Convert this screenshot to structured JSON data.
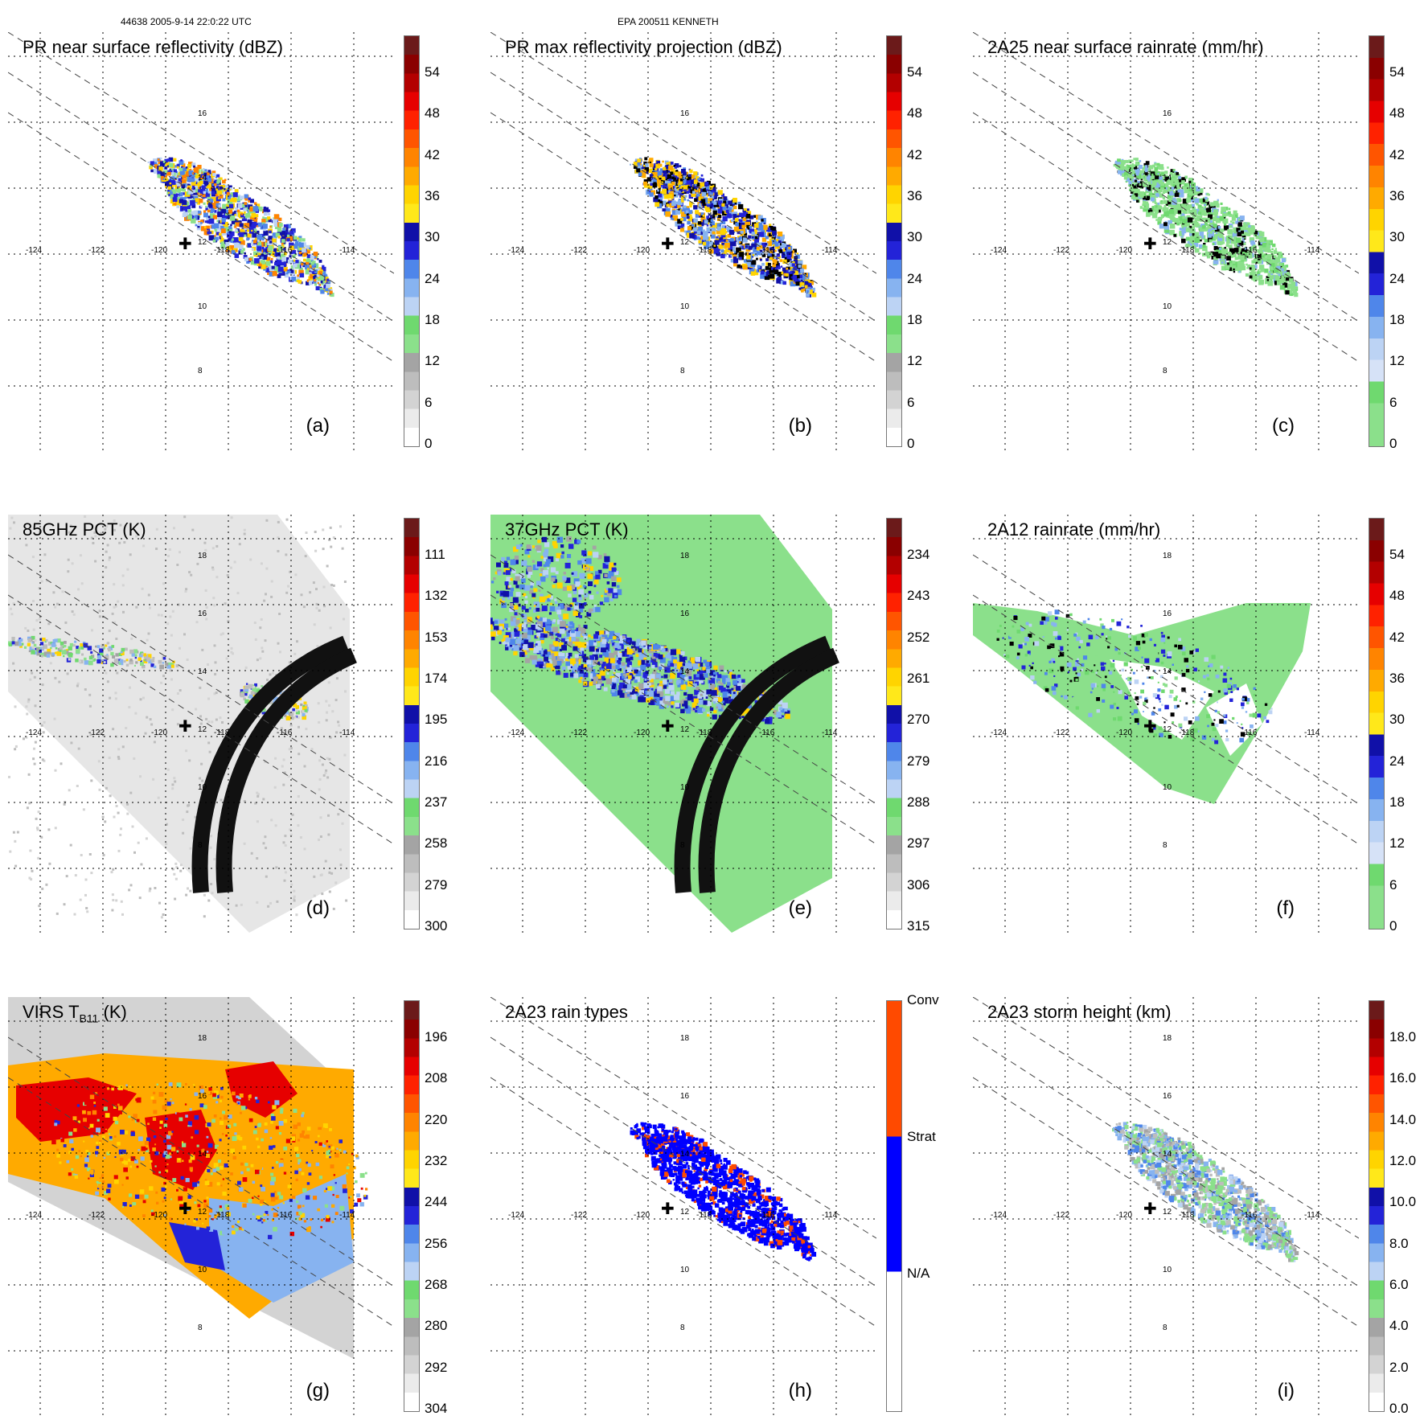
{
  "header": {
    "left": "44638 2005-9-14 22:0:22 UTC",
    "center": "EPA 200511 KENNETH"
  },
  "panels": [
    {
      "id": "a",
      "title": "PR near surface reflectivity (dBZ)",
      "label": "(a)",
      "colorbar": [
        "#ffffff",
        "#ebebeb",
        "#d3d3d3",
        "#bdbdbd",
        "#a4a4a4",
        "#8be08b",
        "#6fd96f",
        "#bcd3f4",
        "#87b3f0",
        "#4f86ea",
        "#2323d8",
        "#1010a8",
        "#ffe81a",
        "#ffd400",
        "#ffaa00",
        "#ff8400",
        "#ff5500",
        "#ff2200",
        "#e60000",
        "#b30000",
        "#8a0000",
        "#6b1a1a"
      ],
      "ticks": [
        "54",
        "48",
        "42",
        "36",
        "30",
        "24",
        "18",
        "12",
        "6",
        "0"
      ],
      "lon_labels": [
        "-124",
        "-122",
        "-120",
        "-118",
        "-116",
        "-114"
      ],
      "lat_labels": [
        "16",
        "14",
        "12",
        "10",
        "8"
      ],
      "shape": "pr",
      "palette": [
        "#2323d8",
        "#4f86ea",
        "#bcd3f4",
        "#ffd400",
        "#ff8400",
        "#8be08b",
        "#1010a8"
      ]
    },
    {
      "id": "b",
      "title": "PR max reflectivity projection (dBZ)",
      "label": "(b)",
      "colorbar": [
        "#ffffff",
        "#ebebeb",
        "#d3d3d3",
        "#bdbdbd",
        "#a4a4a4",
        "#8be08b",
        "#6fd96f",
        "#bcd3f4",
        "#87b3f0",
        "#4f86ea",
        "#2323d8",
        "#1010a8",
        "#ffe81a",
        "#ffd400",
        "#ffaa00",
        "#ff8400",
        "#ff5500",
        "#ff2200",
        "#e60000",
        "#b30000",
        "#8a0000",
        "#6b1a1a"
      ],
      "ticks": [
        "54",
        "48",
        "42",
        "36",
        "30",
        "24",
        "18",
        "12",
        "6",
        "0"
      ],
      "lon_labels": [
        "-124",
        "-122",
        "-120",
        "-118",
        "-116",
        "-114"
      ],
      "lat_labels": [
        "16",
        "14",
        "12",
        "10",
        "8"
      ],
      "shape": "pr",
      "palette": [
        "#2323d8",
        "#1010a8",
        "#4f86ea",
        "#ffaa00",
        "#ffd400",
        "#87b3f0",
        "#000000"
      ]
    },
    {
      "id": "c",
      "title": "2A25 near surface rainrate (mm/hr)",
      "label": "(c)",
      "colorbar": [
        "#8be08b",
        "#8be08b",
        "#6fd96f",
        "#d6e2f7",
        "#bcd3f4",
        "#87b3f0",
        "#4f86ea",
        "#2323d8",
        "#1010a8",
        "#ffe81a",
        "#ffd400",
        "#ffaa00",
        "#ff8400",
        "#ff5500",
        "#ff2200",
        "#e60000",
        "#b30000",
        "#8a0000",
        "#6b1a1a"
      ],
      "ticks": [
        "54",
        "48",
        "42",
        "36",
        "30",
        "24",
        "18",
        "12",
        "6",
        "0"
      ],
      "lon_labels": [
        "-124",
        "-122",
        "-120",
        "-118",
        "-116",
        "-114"
      ],
      "lat_labels": [
        "16",
        "14",
        "12",
        "10",
        "8"
      ],
      "shape": "pr",
      "palette": [
        "#8be08b",
        "#8be08b",
        "#6fd96f",
        "#87b3f0",
        "#8be08b",
        "#000000",
        "#8be08b"
      ]
    },
    {
      "id": "d",
      "title": "85GHz PCT (K)",
      "label": "(d)",
      "colorbar": [
        "#ffffff",
        "#ebebeb",
        "#d3d3d3",
        "#bdbdbd",
        "#a4a4a4",
        "#8be08b",
        "#6fd96f",
        "#bcd3f4",
        "#87b3f0",
        "#4f86ea",
        "#2323d8",
        "#1010a8",
        "#ffe81a",
        "#ffd400",
        "#ffaa00",
        "#ff8400",
        "#ff5500",
        "#ff2200",
        "#e60000",
        "#b30000",
        "#8a0000",
        "#6b1a1a"
      ],
      "ticks": [
        "111",
        "132",
        "153",
        "174",
        "195",
        "216",
        "237",
        "258",
        "279",
        "300"
      ],
      "lon_labels": [
        "-124",
        "-122",
        "-120",
        "-118",
        "-116",
        "-114"
      ],
      "lat_labels": [
        "18",
        "16",
        "14",
        "12",
        "10",
        "8"
      ],
      "shape": "tmi85",
      "palette": [
        "#8be08b",
        "#87b3f0",
        "#2323d8",
        "#a4a4a4",
        "#6fd96f",
        "#bdbdbd",
        "#ffd400"
      ]
    },
    {
      "id": "e",
      "title": "37GHz PCT (K)",
      "label": "(e)",
      "colorbar": [
        "#ffffff",
        "#ebebeb",
        "#d3d3d3",
        "#bdbdbd",
        "#a4a4a4",
        "#8be08b",
        "#6fd96f",
        "#bcd3f4",
        "#87b3f0",
        "#4f86ea",
        "#2323d8",
        "#1010a8",
        "#ffe81a",
        "#ffd400",
        "#ffaa00",
        "#ff8400",
        "#ff5500",
        "#ff2200",
        "#e60000",
        "#b30000",
        "#8a0000",
        "#6b1a1a"
      ],
      "ticks": [
        "234",
        "243",
        "252",
        "261",
        "270",
        "279",
        "288",
        "297",
        "306",
        "315"
      ],
      "lon_labels": [
        "-124",
        "-122",
        "-120",
        "-118",
        "-116",
        "-114"
      ],
      "lat_labels": [
        "18",
        "16",
        "14",
        "12",
        "10",
        "8"
      ],
      "shape": "tmi37",
      "palette": [
        "#2323d8",
        "#1010a8",
        "#4f86ea",
        "#87b3f0",
        "#bcd3f4",
        "#ffd400",
        "#a4a4a4"
      ]
    },
    {
      "id": "f",
      "title": "2A12 rainrate (mm/hr)",
      "label": "(f)",
      "colorbar": [
        "#8be08b",
        "#8be08b",
        "#6fd96f",
        "#d6e2f7",
        "#bcd3f4",
        "#87b3f0",
        "#4f86ea",
        "#2323d8",
        "#1010a8",
        "#ffe81a",
        "#ffd400",
        "#ffaa00",
        "#ff8400",
        "#ff5500",
        "#ff2200",
        "#e60000",
        "#b30000",
        "#8a0000",
        "#6b1a1a"
      ],
      "ticks": [
        "54",
        "48",
        "42",
        "36",
        "30",
        "24",
        "18",
        "12",
        "6",
        "0"
      ],
      "lon_labels": [
        "-124",
        "-122",
        "-120",
        "-118",
        "-116",
        "-114"
      ],
      "lat_labels": [
        "18",
        "16",
        "14",
        "12",
        "10",
        "8"
      ],
      "shape": "rain12",
      "palette": [
        "#6fd96f",
        "#87b3f0",
        "#4f86ea",
        "#8be08b",
        "#bcd3f4",
        "#2323d8",
        "#000000"
      ]
    },
    {
      "id": "g",
      "title": "VIRS T",
      "title_sub": "B11",
      "title_suffix": " (K)",
      "label": "(g)",
      "colorbar": [
        "#ffffff",
        "#ebebeb",
        "#d3d3d3",
        "#bdbdbd",
        "#a4a4a4",
        "#8be08b",
        "#6fd96f",
        "#bcd3f4",
        "#87b3f0",
        "#4f86ea",
        "#2323d8",
        "#1010a8",
        "#ffe81a",
        "#ffd400",
        "#ffaa00",
        "#ff8400",
        "#ff5500",
        "#ff2200",
        "#e60000",
        "#b30000",
        "#8a0000",
        "#6b1a1a"
      ],
      "ticks": [
        "196",
        "208",
        "220",
        "232",
        "244",
        "256",
        "268",
        "280",
        "292",
        "304"
      ],
      "lon_labels": [
        "-124",
        "-122",
        "-120",
        "-118",
        "-116",
        "-114"
      ],
      "lat_labels": [
        "18",
        "16",
        "14",
        "12",
        "10",
        "8"
      ],
      "shape": "virs",
      "palette": [
        "#ff8400",
        "#ffaa00",
        "#e60000",
        "#2323d8",
        "#87b3f0",
        "#8be08b",
        "#ffd400"
      ]
    },
    {
      "id": "h",
      "title": "2A23 rain types",
      "label": "(h)",
      "colorbar_categorical": [
        {
          "name": "Conv",
          "color": "#ff4a00"
        },
        {
          "name": "Strat",
          "color": "#0000ff"
        },
        {
          "name": "N/A",
          "color": "#ffffff"
        }
      ],
      "lon_labels": [
        "-124",
        "-122",
        "-120",
        "-118",
        "-116",
        "-114"
      ],
      "lat_labels": [
        "18",
        "16",
        "14",
        "12",
        "10",
        "8"
      ],
      "shape": "pr2",
      "palette": [
        "#0000ff",
        "#0000ff",
        "#0000ff",
        "#0000ff",
        "#ff4a00",
        "#0000ff",
        "#0000ff"
      ]
    },
    {
      "id": "i",
      "title": "2A23 storm height (km)",
      "label": "(i)",
      "colorbar": [
        "#ffffff",
        "#ebebeb",
        "#d3d3d3",
        "#bdbdbd",
        "#a4a4a4",
        "#8be08b",
        "#6fd96f",
        "#bcd3f4",
        "#87b3f0",
        "#4f86ea",
        "#2323d8",
        "#1010a8",
        "#ffe81a",
        "#ffd400",
        "#ffaa00",
        "#ff8400",
        "#ff5500",
        "#ff2200",
        "#e60000",
        "#b30000",
        "#8a0000",
        "#6b1a1a"
      ],
      "ticks": [
        "18.0",
        "16.0",
        "14.0",
        "12.0",
        "10.0",
        "8.0",
        "6.0",
        "4.0",
        "2.0",
        "0.0"
      ],
      "lon_labels": [
        "-124",
        "-122",
        "-120",
        "-118",
        "-116",
        "-114"
      ],
      "lat_labels": [
        "18",
        "16",
        "14",
        "12",
        "10",
        "8"
      ],
      "shape": "pr2",
      "palette": [
        "#8be08b",
        "#a4a4a4",
        "#bdbdbd",
        "#87b3f0",
        "#8be08b",
        "#bcd3f4",
        "#4f86ea"
      ]
    }
  ]
}
